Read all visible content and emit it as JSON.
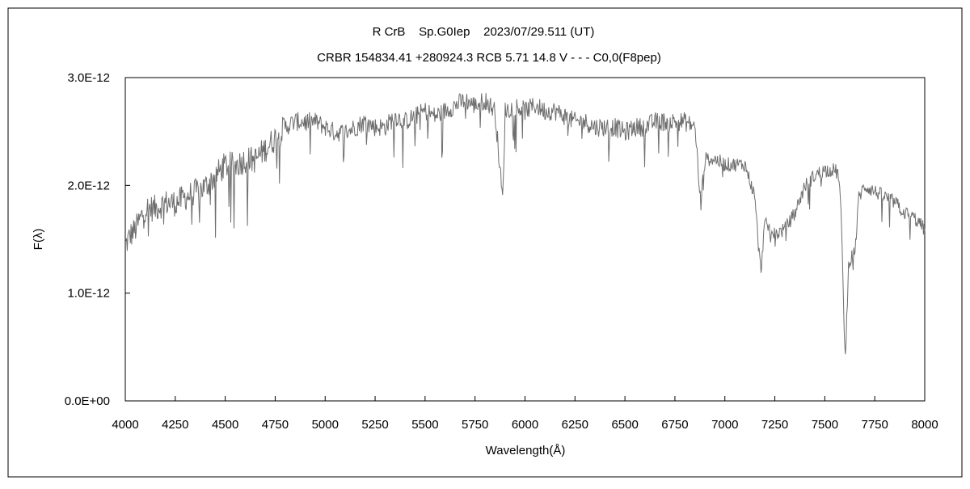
{
  "chart_data": {
    "type": "line",
    "title": "R CrB    Sp.G0Iep    2023/07/29.511 (UT)",
    "subtitle": "CRBR 154834.41 +280924.3 RCB 5.71 14.8 V - - - C0,0(F8pep)",
    "xlabel": "Wavelength(Å)",
    "ylabel": "F(λ)",
    "xlim": [
      4000,
      8000
    ],
    "ylim": [
      0,
      3e-12
    ],
    "xticks": [
      4000,
      4250,
      4500,
      4750,
      5000,
      5250,
      5500,
      5750,
      6000,
      6250,
      6500,
      6750,
      7000,
      7250,
      7500,
      7750,
      8000
    ],
    "yticks": [
      0,
      1e-12,
      2e-12,
      3e-12
    ],
    "ytick_labels": [
      "0.0E+00",
      "1.0E-12",
      "2.0E-12",
      "3.0E-12"
    ],
    "grid": false,
    "line_color": "#6e6e6e",
    "series": [
      {
        "x": [
          4000,
          4025,
          4050,
          4075,
          4100,
          4150,
          4200,
          4250,
          4300,
          4350,
          4400,
          4450,
          4500,
          4550,
          4600,
          4650,
          4700,
          4750,
          4800,
          4850,
          4900,
          4950,
          5000,
          5050,
          5100,
          5150,
          5200,
          5250,
          5300,
          5350,
          5400,
          5450,
          5500,
          5550,
          5600,
          5650,
          5700,
          5750,
          5800,
          5850,
          5889,
          5900,
          5950,
          6000,
          6050,
          6100,
          6150,
          6200,
          6250,
          6300,
          6350,
          6400,
          6450,
          6500,
          6550,
          6600,
          6650,
          6700,
          6750,
          6800,
          6850,
          6860,
          6870,
          6880,
          6900,
          6950,
          7000,
          7050,
          7100,
          7150,
          7170,
          7180,
          7190,
          7200,
          7250,
          7300,
          7350,
          7400,
          7450,
          7500,
          7550,
          7570,
          7580,
          7590,
          7600,
          7605,
          7610,
          7620,
          7650,
          7660,
          7670,
          7700,
          7750,
          7800,
          7850,
          7900,
          7950,
          8000
        ],
        "y": [
          1.45e-12,
          1.55e-12,
          1.6e-12,
          1.7e-12,
          1.8e-12,
          1.8e-12,
          1.85e-12,
          1.85e-12,
          1.9e-12,
          1.95e-12,
          2e-12,
          2.1e-12,
          2.2e-12,
          2.2e-12,
          2.25e-12,
          2.25e-12,
          2.35e-12,
          2.45e-12,
          2.55e-12,
          2.6e-12,
          2.6e-12,
          2.6e-12,
          2.55e-12,
          2.5e-12,
          2.5e-12,
          2.55e-12,
          2.6e-12,
          2.55e-12,
          2.55e-12,
          2.65e-12,
          2.6e-12,
          2.65e-12,
          2.7e-12,
          2.65e-12,
          2.7e-12,
          2.75e-12,
          2.8e-12,
          2.75e-12,
          2.8e-12,
          2.7e-12,
          1.85e-12,
          2.7e-12,
          2.75e-12,
          2.7e-12,
          2.75e-12,
          2.7e-12,
          2.7e-12,
          2.65e-12,
          2.6e-12,
          2.6e-12,
          2.55e-12,
          2.55e-12,
          2.55e-12,
          2.5e-12,
          2.55e-12,
          2.55e-12,
          2.6e-12,
          2.6e-12,
          2.6e-12,
          2.6e-12,
          2.55e-12,
          2.35e-12,
          2e-12,
          1.85e-12,
          2.25e-12,
          2.25e-12,
          2.2e-12,
          2.2e-12,
          2.2e-12,
          1.9e-12,
          1.4e-12,
          1.2e-12,
          1.45e-12,
          1.65e-12,
          1.55e-12,
          1.6e-12,
          1.75e-12,
          2e-12,
          2.1e-12,
          2.15e-12,
          2.15e-12,
          2.1e-12,
          1.8e-12,
          1.2e-12,
          5e-13,
          4e-13,
          8e-13,
          1.3e-12,
          1.4e-12,
          1.6e-12,
          1.9e-12,
          2e-12,
          1.95e-12,
          1.9e-12,
          1.85e-12,
          1.75e-12,
          1.7e-12,
          1.6e-12
        ]
      }
    ]
  }
}
